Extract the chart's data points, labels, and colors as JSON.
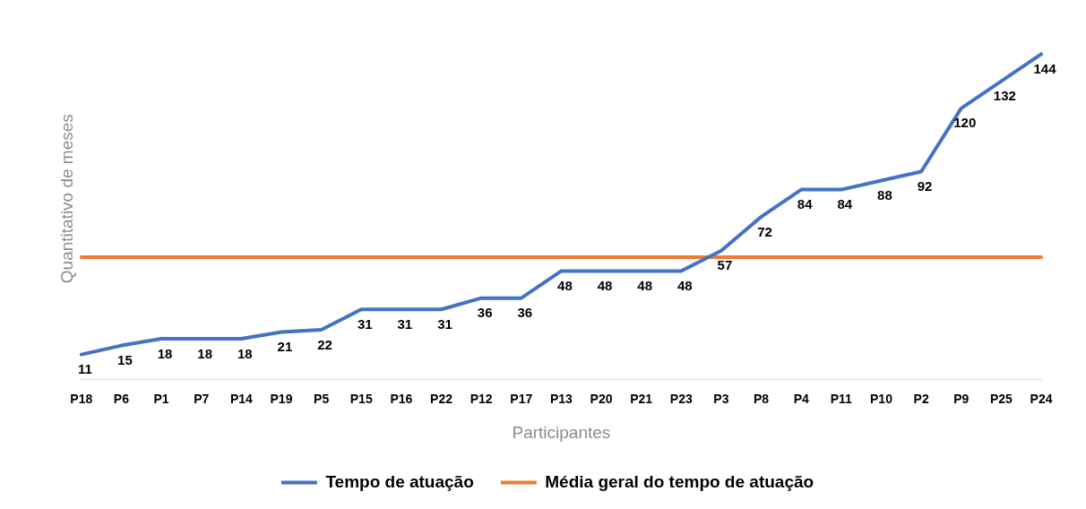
{
  "chart_data": {
    "type": "line",
    "xlabel": "Participantes",
    "ylabel": "Quantitativo de meses",
    "categories": [
      "P18",
      "P6",
      "P1",
      "P7",
      "P14",
      "P19",
      "P5",
      "P15",
      "P16",
      "P22",
      "P12",
      "P17",
      "P13",
      "P20",
      "P21",
      "P23",
      "P3",
      "P8",
      "P4",
      "P11",
      "P10",
      "P2",
      "P9",
      "P25",
      "P24"
    ],
    "series": [
      {
        "name": "Tempo de atuação",
        "color": "#4472c4",
        "values": [
          11,
          15,
          18,
          18,
          18,
          21,
          22,
          31,
          31,
          31,
          36,
          36,
          48,
          48,
          48,
          48,
          57,
          72,
          84,
          84,
          88,
          92,
          120,
          132,
          144
        ],
        "data_labels": true
      },
      {
        "name": "Média geral do tempo de atuação",
        "color": "#ed7d31",
        "values": [
          54.1,
          54.1,
          54.1,
          54.1,
          54.1,
          54.1,
          54.1,
          54.1,
          54.1,
          54.1,
          54.1,
          54.1,
          54.1,
          54.1,
          54.1,
          54.1,
          54.1,
          54.1,
          54.1,
          54.1,
          54.1,
          54.1,
          54.1,
          54.1,
          54.1
        ]
      }
    ],
    "tick_labels": "x",
    "grid": false,
    "legend": "bottom",
    "marker": "none",
    "line_style": "solid"
  }
}
